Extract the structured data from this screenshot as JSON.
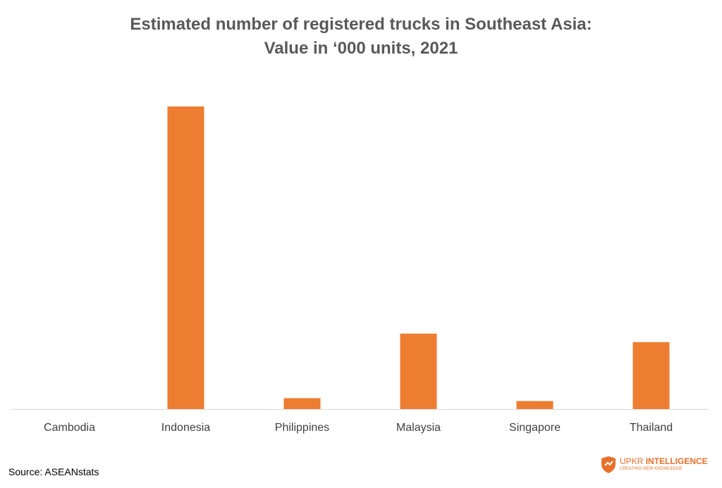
{
  "chart_data": {
    "type": "bar",
    "title_lines": [
      "Estimated number of registered trucks in Southeast Asia:",
      "Value in ‘000 units, 2021"
    ],
    "categories": [
      "Cambodia",
      "Indonesia",
      "Philippines",
      "Malaysia",
      "Singapore",
      "Thailand"
    ],
    "values": [
      0,
      5700,
      205,
      1420,
      150,
      1260
    ],
    "ylim": [
      0,
      6000
    ],
    "xlabel": "",
    "ylabel": "",
    "grid": false,
    "legend": "none",
    "bar_color": "#ed7d31",
    "axis_color": "#d9d9d9"
  },
  "footer": {
    "source": "Source: ASEANstats"
  },
  "brand": {
    "name_part1": "UPKR ",
    "name_part2": "INTELLIGENCE",
    "tagline": "CREATING NEW KNOWLEDGE",
    "color": "#e8702a"
  }
}
